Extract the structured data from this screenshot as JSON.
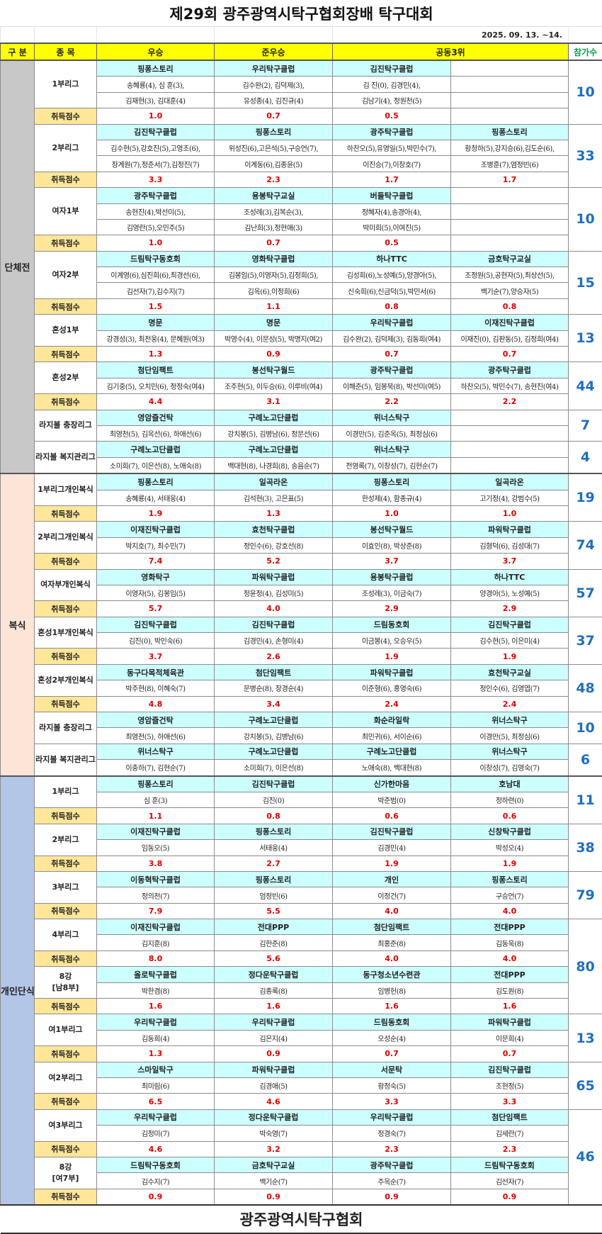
{
  "title": "제29회 광주광역시탁구협회장배 탁구대회",
  "date": "2025. 09. 13. ~14.",
  "header": {
    "category": "구 분",
    "event": "종 목",
    "winner": "우승",
    "runner_up": "준우승",
    "third": "공동3위",
    "participants": "참가수"
  },
  "score_label": "취득점수",
  "footer": "광주광역시탁구협회",
  "colors": {
    "header_bg": "#ffff00",
    "club_bg": "#ccffff",
    "score_label_bg": "#ffe699",
    "score_text": "#e00000",
    "participants_text": "#1f6fbf",
    "team_band": "#c8c8c8",
    "doubles_band": "#fce4d6",
    "singles_band": "#b4c6e7"
  },
  "sections": [
    {
      "label": "단체전",
      "color": "#c8c8c8",
      "groups": [
        {
          "participants": "10",
          "events": [
            {
              "name": "1부리그",
              "clubs": [
                "핑퐁스토리",
                "우리탁구클럽",
                "김진탁구클럽",
                ""
              ],
              "lines": [
                [
                  "송혜룡(4), 심 훈(3),",
                  "김수완(2), 김덕제(3),",
                  "김 진(0), 김경민(4),",
                  ""
                ],
                [
                  "김재현(3), 김대훈(4)",
                  "유성종(4), 김진규(4)",
                  "김남기(4), 정원천(5)",
                  ""
                ]
              ],
              "scores": [
                "1.0",
                "0.7",
                "0.5",
                ""
              ]
            }
          ]
        },
        {
          "participants": "33",
          "events": [
            {
              "name": "2부리그",
              "clubs": [
                "김진탁구클럽",
                "핑퐁스토리",
                "광주탁구클럽",
                "핑퐁스토리"
              ],
              "lines": [
                [
                  "김수현(5),강호진(5),고영조(6),",
                  "위성진(6),고은석(5),구승언(7),",
                  "하찬오(5),유영일(5),박민수(7),",
                  "황청하(5),강지승(6),김도순(6),"
                ],
                [
                  "장계원(7),정준서(7),김정진(7)",
                  "이계동(6),김종윤(5)",
                  "이진승(7),이창호(7)",
                  "조병훈(7),염정빈(6)"
                ]
              ],
              "scores": [
                "3.3",
                "2.3",
                "1.7",
                "1.7"
              ]
            }
          ]
        },
        {
          "participants": "10",
          "events": [
            {
              "name": "여자1부",
              "clubs": [
                "광주탁구클럽",
                "용봉탁구교실",
                "버들탁구클럽",
                ""
              ],
              "lines": [
                [
                  "송현진(4),박선미(5),",
                  "조성례(3),김복순(3),",
                  "정혜자(4),송경아(4),",
                  ""
                ],
                [
                  "김영란(5),오민주(5)",
                  "김난희(3),정현애(3)",
                  "박미희(5),이여진(5)",
                  ""
                ]
              ],
              "scores": [
                "1.0",
                "0.7",
                "0.5",
                ""
              ]
            }
          ]
        },
        {
          "participants": "15",
          "events": [
            {
              "name": "여자2부",
              "clubs": [
                "드림탁구동호회",
                "영화탁구클럽",
                "하나TTC",
                "금호탁구교실"
              ],
              "lines": [
                [
                  "이계영(6),심진희(6),최경선(6),",
                  "김봉임(5),이영자(5),김정희(5),",
                  "김성희(6),노성예(5),양경아(5),",
                  "조정원(5),공현자(5),최상선(5),"
                ],
                [
                  "김선자(7),김수지(7)",
                  "김옥(6),이정희(6)",
                  "신숙희(6),신금덕(5),박민서(6)",
                  "백기순(7),양승자(5)"
                ]
              ],
              "scores": [
                "1.5",
                "1.1",
                "0.8",
                "0.8"
              ]
            }
          ]
        },
        {
          "participants": "13",
          "events": [
            {
              "name": "혼성1부",
              "clubs": [
                "명문",
                "명문",
                "우리탁구클럽",
                "이재진탁구클럽"
              ],
              "lines": [
                [
                  "강경성(3), 최천웅(4), 문혜원(여3)",
                  "박영수(4), 이문성(5), 박명지(여2)",
                  "김수완(2), 김덕제(3), 김동희(여4)",
                  "이재진(0), 김판동(5), 김정희(여4)"
                ]
              ],
              "scores": [
                "1.3",
                "0.9",
                "0.7",
                "0.7"
              ]
            }
          ]
        },
        {
          "participants": "44",
          "events": [
            {
              "name": "혼성2부",
              "clubs": [
                "첨단임팩트",
                "봉선탁구월드",
                "광주탁구클럽",
                "광주탁구클럽"
              ],
              "lines": [
                [
                  "김기중(5), 오치민(6), 정정숙(여4)",
                  "조주현(5), 이두승(6), 이루비(여4)",
                  "이해준(5), 임봉묵(8), 박선미(여5)",
                  "하찬오(5), 박민수(7), 송현진(여4)"
                ]
              ],
              "scores": [
                "4.4",
                "3.1",
                "2.2",
                "2.2"
              ]
            }
          ]
        },
        {
          "participants": "7",
          "events": [
            {
              "name": "라지볼 충장리그",
              "clubs": [
                "영암즐건탁",
                "구례노고단클럽",
                "위너스탁구",
                ""
              ],
              "lines": [
                [
                  "최영천(5), 김옥선(6), 하애선(6)",
                  "강치봉(5), 김병남(6), 정문선(6)",
                  "이경만(5), 김준옥(5), 최정심(6)",
                  ""
                ]
              ],
              "scores": null
            }
          ]
        },
        {
          "participants": "4",
          "events": [
            {
              "name": "라지볼 복지관리그",
              "clubs": [
                "구례노고단클럽",
                "구례노고단클럽",
                "위너스탁구",
                ""
              ],
              "lines": [
                [
                  "소미희(7), 이은선(8), 노애숙(8)",
                  "백대현(8), 나경희(8), 송음순(7)",
                  "전영록(7), 이창성(7), 김현순(7)",
                  ""
                ]
              ],
              "scores": null
            }
          ]
        }
      ]
    },
    {
      "label": "복식",
      "color": "#fce4d6",
      "groups": [
        {
          "participants": "19",
          "events": [
            {
              "name": "1부리그개인복식",
              "clubs": [
                "핑퐁스토리",
                "일곡라온",
                "핑퐁스토리",
                "일곡라온"
              ],
              "lines": [
                [
                  "송혜룡(4), 서태웅(4)",
                  "김석현(3), 고은표(5)",
                  "한성제(4), 함종규(4)",
                  "고기정(4), 강범수(5)"
                ]
              ],
              "scores": [
                "1.9",
                "1.3",
                "1.0",
                "1.0"
              ]
            }
          ]
        },
        {
          "participants": "74",
          "events": [
            {
              "name": "2부리그개인복식",
              "clubs": [
                "이재진탁구클럽",
                "효천탁구클럽",
                "봉선탁구월드",
                "파워탁구클럽"
              ],
              "lines": [
                [
                  "박지호(7), 최수민(7)",
                  "정인수(6), 강호선(8)",
                  "이효인(8), 박상준(8)",
                  "김형덕(6), 김성대(7)"
                ]
              ],
              "scores": [
                "7.4",
                "5.2",
                "3.7",
                "3.7"
              ]
            }
          ]
        },
        {
          "participants": "57",
          "events": [
            {
              "name": "여자부개인복식",
              "clubs": [
                "영화탁구",
                "파워탁구클럽",
                "용봉탁구클럽",
                "하나TTC"
              ],
              "lines": [
                [
                  "이영자(5), 김봉임(5)",
                  "정윤정(4), 김성미(5)",
                  "조성례(3), 이금숙(7)",
                  "양경아(5), 노성예(5)"
                ]
              ],
              "scores": [
                "5.7",
                "4.0",
                "2.9",
                "2.9"
              ]
            }
          ]
        },
        {
          "participants": "37",
          "events": [
            {
              "name": "혼성1부개인복식",
              "clubs": [
                "김진탁구클럽",
                "김진탁구클럽",
                "드림동호회",
                "김진탁구클럽"
              ],
              "lines": [
                [
                  "김진(0), 박인숙(6)",
                  "김경민(4), 손형미(4)",
                  "이금봉(4), 오승우(5)",
                  "김수현(5), 이은미(4)"
                ]
              ],
              "scores": [
                "3.7",
                "2.6",
                "1.9",
                "1.9"
              ]
            }
          ]
        },
        {
          "participants": "48",
          "events": [
            {
              "name": "혼성2부개인복식",
              "clubs": [
                "동구다목적체육관",
                "첨단임팩트",
                "파워탁구클럽",
                "효천탁구교실"
              ],
              "lines": [
                [
                  "박주현(8), 이혜숙(7)",
                  "문병순(8), 장경순(4)",
                  "이준형(6), 홍영숙(6)",
                  "정인수(6), 김영엽(7)"
                ]
              ],
              "scores": [
                "4.8",
                "3.4",
                "2.4",
                "2.4"
              ]
            }
          ]
        },
        {
          "participants": "10",
          "events": [
            {
              "name": "라지볼 충장리그",
              "clubs": [
                "영암즐건탁",
                "구례노고단클럽",
                "화순라일락",
                "위너스탁구"
              ],
              "lines": [
                [
                  "최영천(5), 하애선(6)",
                  "강치봉(5), 김병남(6)",
                  "최민귀(6), 서이순(6)",
                  "이경만(5), 최정심(6)"
                ]
              ],
              "scores": null
            }
          ]
        },
        {
          "participants": "6",
          "events": [
            {
              "name": "라지볼 복지관리그",
              "clubs": [
                "위너스탁구",
                "구례노고단클럽",
                "구례노고단클럽",
                "위너스탁구"
              ],
              "lines": [
                [
                  "이충하(7), 김현순(7)",
                  "소미희(7), 이은선(8)",
                  "노애숙(8), 백대현(8)",
                  "이창성(7), 김영숙(7)"
                ]
              ],
              "scores": null
            }
          ]
        }
      ]
    },
    {
      "label": "개인단식",
      "color": "#b4c6e7",
      "groups": [
        {
          "participants": "11",
          "events": [
            {
              "name": "1부리그",
              "clubs": [
                "핑퐁스토리",
                "김진탁구클럽",
                "신가한마음",
                "호남대"
              ],
              "lines": [
                [
                  "심 훈(3)",
                  "김진(0)",
                  "박준범(0)",
                  "정하련(0)"
                ]
              ],
              "scores": [
                "1.1",
                "0.8",
                "0.6",
                "0.6"
              ]
            }
          ]
        },
        {
          "participants": "38",
          "events": [
            {
              "name": "2부리그",
              "clubs": [
                "이재진탁구클럽",
                "핑퐁스토리",
                "김진탁구클럽",
                "신창탁구클럽"
              ],
              "lines": [
                [
                  "임동오(5)",
                  "서태웅(4)",
                  "김경민(4)",
                  "박성오(4)"
                ]
              ],
              "scores": [
                "3.8",
                "2.7",
                "1.9",
                "1.9"
              ]
            }
          ]
        },
        {
          "participants": "79",
          "events": [
            {
              "name": "3부리그",
              "clubs": [
                "이동혁탁구클럽",
                "핑퐁스토리",
                "개인",
                "핑퐁스토리"
              ],
              "lines": [
                [
                  "정의천(7)",
                  "엄정빈(6)",
                  "이정건(7)",
                  "구승언(7)"
                ]
              ],
              "scores": [
                "7.9",
                "5.5",
                "4.0",
                "4.0"
              ]
            }
          ]
        },
        {
          "participants": "80",
          "events": [
            {
              "name": "4부리그",
              "clubs": [
                "이재진탁구클럽",
                "전대PPP",
                "첨단임팩트",
                "전대PPP"
              ],
              "lines": [
                [
                  "김지훈(8)",
                  "김한준(8)",
                  "최홍준(8)",
                  "김동욱(8)"
                ]
              ],
              "scores": [
                "8.0",
                "5.6",
                "4.0",
                "4.0"
              ]
            },
            {
              "name": "8강\n[남8부]",
              "clubs": [
                "올로탁구클럽",
                "정다운탁구클럽",
                "동구청소년수련관",
                "전대PPP"
              ],
              "lines": [
                [
                  "박한겸(8)",
                  "김종록(8)",
                  "임병헌(8)",
                  "김도원(8)"
                ]
              ],
              "scores": [
                "1.6",
                "1.6",
                "1.6",
                "1.6"
              ]
            }
          ]
        },
        {
          "participants": "13",
          "events": [
            {
              "name": "여1부리그",
              "clubs": [
                "우리탁구클럽",
                "우리탁구클럽",
                "드림동호회",
                "파워탁구클럽"
              ],
              "lines": [
                [
                  "김동희(4)",
                  "김은지(4)",
                  "오성순(4)",
                  "이문희(4)"
                ]
              ],
              "scores": [
                "1.3",
                "0.9",
                "0.7",
                "0.7"
              ]
            }
          ]
        },
        {
          "participants": "65",
          "events": [
            {
              "name": "여2부리그",
              "clubs": [
                "스마일탁구",
                "파워탁구클럽",
                "서문탁",
                "김진탁구클럽"
              ],
              "lines": [
                [
                  "최미림(6)",
                  "김경애(5)",
                  "황정숙(5)",
                  "조현정(5)"
                ]
              ],
              "scores": [
                "6.5",
                "4.6",
                "3.3",
                "3.3"
              ]
            }
          ]
        },
        {
          "participants": "46",
          "events": [
            {
              "name": "여3부리그",
              "clubs": [
                "우리탁구클럽",
                "정다운탁구클럽",
                "우리탁구클럽",
                "첨단임팩트"
              ],
              "lines": [
                [
                  "김정미(7)",
                  "박숙영(7)",
                  "정경숙(7)",
                  "김세란(7)"
                ]
              ],
              "scores": [
                "4.6",
                "3.2",
                "2.3",
                "2.3"
              ]
            },
            {
              "name": "8강\n[여7부]",
              "clubs": [
                "드림탁구동호회",
                "금호탁구교실",
                "광주탁구클럽",
                "드림탁구동호회"
              ],
              "lines": [
                [
                  "김수지(7)",
                  "백기순(7)",
                  "주옥순(7)",
                  "김선자(7)"
                ]
              ],
              "scores": [
                "0.9",
                "0.9",
                "0.9",
                "0.9"
              ]
            }
          ]
        }
      ]
    }
  ]
}
